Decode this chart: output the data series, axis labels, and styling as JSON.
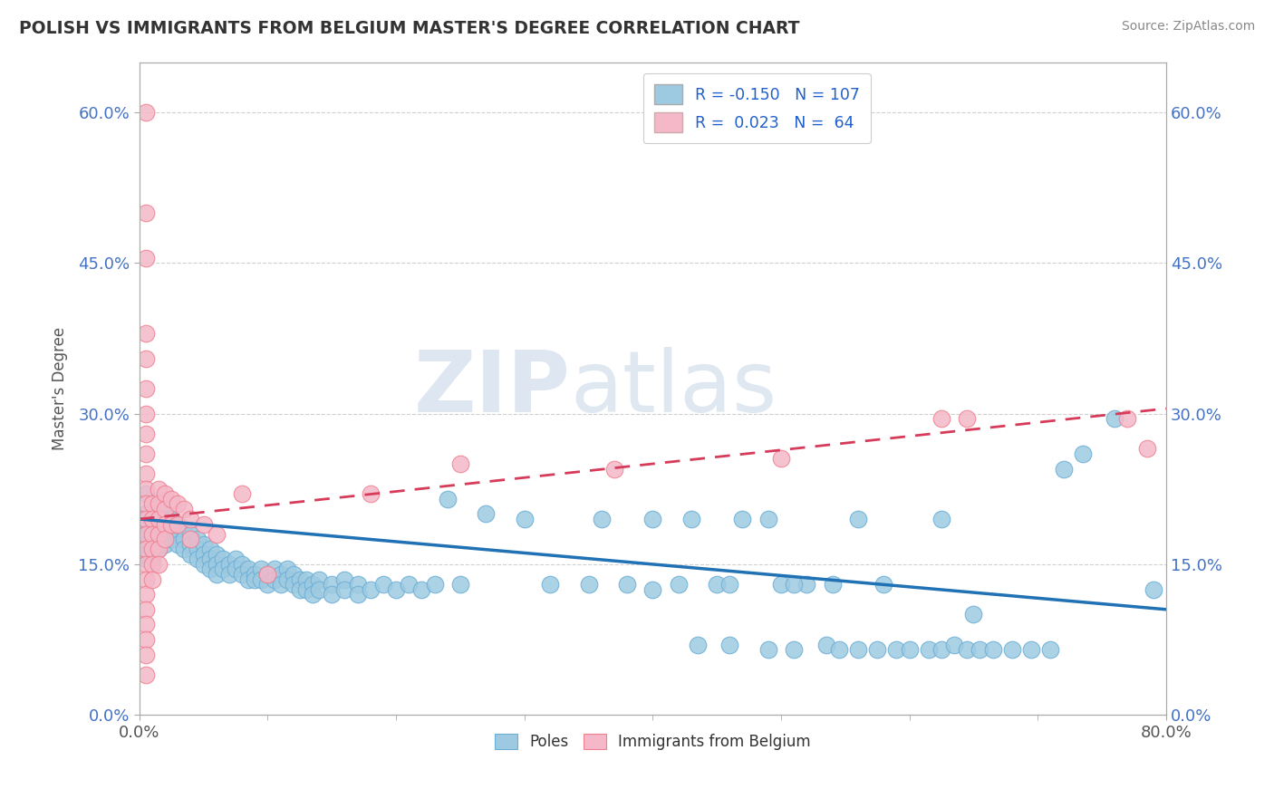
{
  "title": "POLISH VS IMMIGRANTS FROM BELGIUM MASTER'S DEGREE CORRELATION CHART",
  "source": "Source: ZipAtlas.com",
  "ylabel": "Master's Degree",
  "watermark_zip": "ZIP",
  "watermark_atlas": "atlas",
  "xmin": 0.0,
  "xmax": 0.8,
  "ymin": 0.0,
  "ymax": 0.65,
  "yticks": [
    0.0,
    0.15,
    0.3,
    0.45,
    0.6
  ],
  "ytick_labels": [
    "0.0%",
    "15.0%",
    "30.0%",
    "45.0%",
    "60.0%"
  ],
  "xticks": [
    0.0,
    0.8
  ],
  "xtick_labels": [
    "0.0%",
    "80.0%"
  ],
  "blue_color": "#9ecae1",
  "pink_color": "#f4b8c8",
  "blue_edge_color": "#6baed6",
  "pink_edge_color": "#f08090",
  "blue_line_color": "#2171b5",
  "pink_line_color": "#d63b5a",
  "blue_scatter": [
    [
      0.005,
      0.22
    ],
    [
      0.005,
      0.2
    ],
    [
      0.005,
      0.19
    ],
    [
      0.005,
      0.18
    ],
    [
      0.005,
      0.17
    ],
    [
      0.005,
      0.16
    ],
    [
      0.005,
      0.155
    ],
    [
      0.01,
      0.21
    ],
    [
      0.01,
      0.195
    ],
    [
      0.01,
      0.185
    ],
    [
      0.01,
      0.175
    ],
    [
      0.01,
      0.165
    ],
    [
      0.01,
      0.155
    ],
    [
      0.015,
      0.205
    ],
    [
      0.015,
      0.195
    ],
    [
      0.015,
      0.185
    ],
    [
      0.015,
      0.175
    ],
    [
      0.015,
      0.165
    ],
    [
      0.02,
      0.2
    ],
    [
      0.02,
      0.19
    ],
    [
      0.02,
      0.18
    ],
    [
      0.02,
      0.17
    ],
    [
      0.025,
      0.195
    ],
    [
      0.025,
      0.185
    ],
    [
      0.025,
      0.175
    ],
    [
      0.03,
      0.19
    ],
    [
      0.03,
      0.18
    ],
    [
      0.03,
      0.17
    ],
    [
      0.035,
      0.185
    ],
    [
      0.035,
      0.175
    ],
    [
      0.035,
      0.165
    ],
    [
      0.04,
      0.18
    ],
    [
      0.04,
      0.17
    ],
    [
      0.04,
      0.16
    ],
    [
      0.045,
      0.175
    ],
    [
      0.045,
      0.165
    ],
    [
      0.045,
      0.155
    ],
    [
      0.05,
      0.17
    ],
    [
      0.05,
      0.16
    ],
    [
      0.05,
      0.15
    ],
    [
      0.055,
      0.165
    ],
    [
      0.055,
      0.155
    ],
    [
      0.055,
      0.145
    ],
    [
      0.06,
      0.16
    ],
    [
      0.06,
      0.15
    ],
    [
      0.06,
      0.14
    ],
    [
      0.065,
      0.155
    ],
    [
      0.065,
      0.145
    ],
    [
      0.07,
      0.15
    ],
    [
      0.07,
      0.14
    ],
    [
      0.075,
      0.155
    ],
    [
      0.075,
      0.145
    ],
    [
      0.08,
      0.15
    ],
    [
      0.08,
      0.14
    ],
    [
      0.085,
      0.145
    ],
    [
      0.085,
      0.135
    ],
    [
      0.09,
      0.14
    ],
    [
      0.09,
      0.135
    ],
    [
      0.095,
      0.145
    ],
    [
      0.095,
      0.135
    ],
    [
      0.1,
      0.14
    ],
    [
      0.1,
      0.13
    ],
    [
      0.105,
      0.145
    ],
    [
      0.105,
      0.135
    ],
    [
      0.11,
      0.14
    ],
    [
      0.11,
      0.13
    ],
    [
      0.115,
      0.145
    ],
    [
      0.115,
      0.135
    ],
    [
      0.12,
      0.14
    ],
    [
      0.12,
      0.13
    ],
    [
      0.125,
      0.135
    ],
    [
      0.125,
      0.125
    ],
    [
      0.13,
      0.135
    ],
    [
      0.13,
      0.125
    ],
    [
      0.135,
      0.13
    ],
    [
      0.135,
      0.12
    ],
    [
      0.14,
      0.135
    ],
    [
      0.14,
      0.125
    ],
    [
      0.15,
      0.13
    ],
    [
      0.15,
      0.12
    ],
    [
      0.16,
      0.135
    ],
    [
      0.16,
      0.125
    ],
    [
      0.17,
      0.13
    ],
    [
      0.17,
      0.12
    ],
    [
      0.18,
      0.125
    ],
    [
      0.19,
      0.13
    ],
    [
      0.2,
      0.125
    ],
    [
      0.21,
      0.13
    ],
    [
      0.22,
      0.125
    ],
    [
      0.23,
      0.13
    ],
    [
      0.24,
      0.215
    ],
    [
      0.25,
      0.13
    ],
    [
      0.27,
      0.2
    ],
    [
      0.3,
      0.195
    ],
    [
      0.32,
      0.13
    ],
    [
      0.35,
      0.13
    ],
    [
      0.36,
      0.195
    ],
    [
      0.38,
      0.13
    ],
    [
      0.4,
      0.195
    ],
    [
      0.42,
      0.13
    ],
    [
      0.45,
      0.13
    ],
    [
      0.47,
      0.195
    ],
    [
      0.5,
      0.13
    ],
    [
      0.52,
      0.13
    ],
    [
      0.54,
      0.13
    ],
    [
      0.56,
      0.195
    ],
    [
      0.58,
      0.13
    ],
    [
      0.4,
      0.125
    ],
    [
      0.43,
      0.195
    ],
    [
      0.46,
      0.13
    ],
    [
      0.49,
      0.195
    ],
    [
      0.51,
      0.13
    ],
    [
      0.435,
      0.07
    ],
    [
      0.46,
      0.07
    ],
    [
      0.49,
      0.065
    ],
    [
      0.51,
      0.065
    ],
    [
      0.535,
      0.07
    ],
    [
      0.545,
      0.065
    ],
    [
      0.56,
      0.065
    ],
    [
      0.575,
      0.065
    ],
    [
      0.59,
      0.065
    ],
    [
      0.6,
      0.065
    ],
    [
      0.615,
      0.065
    ],
    [
      0.625,
      0.065
    ],
    [
      0.635,
      0.07
    ],
    [
      0.645,
      0.065
    ],
    [
      0.655,
      0.065
    ],
    [
      0.665,
      0.065
    ],
    [
      0.68,
      0.065
    ],
    [
      0.695,
      0.065
    ],
    [
      0.71,
      0.065
    ],
    [
      0.625,
      0.195
    ],
    [
      0.65,
      0.1
    ],
    [
      0.72,
      0.245
    ],
    [
      0.735,
      0.26
    ],
    [
      0.76,
      0.295
    ],
    [
      0.79,
      0.125
    ]
  ],
  "pink_scatter": [
    [
      0.005,
      0.6
    ],
    [
      0.005,
      0.5
    ],
    [
      0.005,
      0.455
    ],
    [
      0.005,
      0.38
    ],
    [
      0.005,
      0.355
    ],
    [
      0.005,
      0.325
    ],
    [
      0.005,
      0.3
    ],
    [
      0.005,
      0.28
    ],
    [
      0.005,
      0.26
    ],
    [
      0.005,
      0.24
    ],
    [
      0.005,
      0.225
    ],
    [
      0.005,
      0.21
    ],
    [
      0.005,
      0.195
    ],
    [
      0.005,
      0.18
    ],
    [
      0.005,
      0.165
    ],
    [
      0.005,
      0.15
    ],
    [
      0.005,
      0.135
    ],
    [
      0.005,
      0.12
    ],
    [
      0.005,
      0.105
    ],
    [
      0.005,
      0.09
    ],
    [
      0.005,
      0.075
    ],
    [
      0.005,
      0.06
    ],
    [
      0.005,
      0.04
    ],
    [
      0.01,
      0.21
    ],
    [
      0.01,
      0.195
    ],
    [
      0.01,
      0.18
    ],
    [
      0.01,
      0.165
    ],
    [
      0.01,
      0.15
    ],
    [
      0.01,
      0.135
    ],
    [
      0.015,
      0.225
    ],
    [
      0.015,
      0.21
    ],
    [
      0.015,
      0.195
    ],
    [
      0.015,
      0.18
    ],
    [
      0.015,
      0.165
    ],
    [
      0.015,
      0.15
    ],
    [
      0.02,
      0.22
    ],
    [
      0.02,
      0.205
    ],
    [
      0.02,
      0.19
    ],
    [
      0.02,
      0.175
    ],
    [
      0.025,
      0.215
    ],
    [
      0.025,
      0.19
    ],
    [
      0.03,
      0.21
    ],
    [
      0.03,
      0.19
    ],
    [
      0.035,
      0.205
    ],
    [
      0.04,
      0.195
    ],
    [
      0.04,
      0.175
    ],
    [
      0.05,
      0.19
    ],
    [
      0.06,
      0.18
    ],
    [
      0.08,
      0.22
    ],
    [
      0.1,
      0.14
    ],
    [
      0.18,
      0.22
    ],
    [
      0.25,
      0.25
    ],
    [
      0.37,
      0.245
    ],
    [
      0.5,
      0.255
    ],
    [
      0.625,
      0.295
    ],
    [
      0.645,
      0.295
    ],
    [
      0.77,
      0.295
    ],
    [
      0.785,
      0.265
    ]
  ],
  "blue_trendline_x": [
    0.0,
    0.8
  ],
  "blue_trendline_y": [
    0.195,
    0.105
  ],
  "pink_trendline_x": [
    0.0,
    0.8
  ],
  "pink_trendline_y": [
    0.195,
    0.305
  ]
}
